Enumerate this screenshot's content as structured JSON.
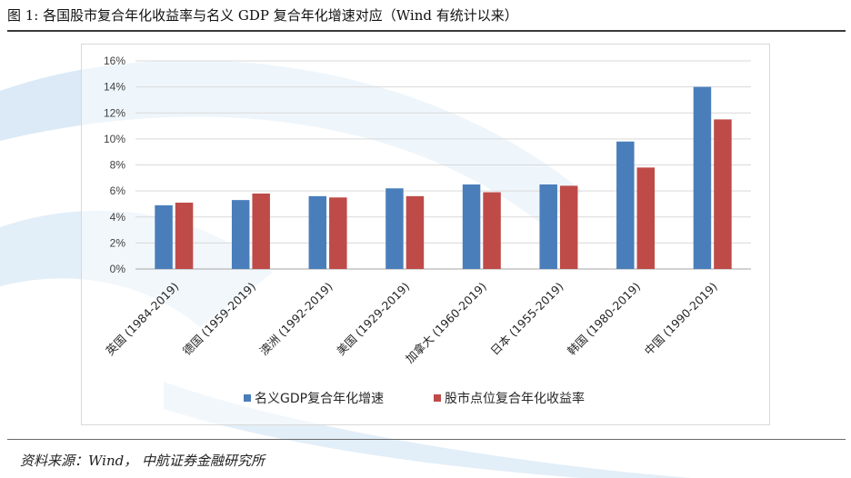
{
  "figure": {
    "title": "图 1:  各国股市复合年化收益率与名义 GDP 复合年化增速对应（Wind 有统计以来）",
    "source": "资料来源：Wind， 中航证券金融研究所"
  },
  "colors": {
    "series_gdp": "#4a7ebb",
    "series_stock": "#be4b48",
    "gridline": "#d9d9d9",
    "watermark": "#cfe3f3"
  },
  "chart_data": {
    "type": "bar",
    "categories": [
      "英国 (1984-2019)",
      "德国 (1959-2019)",
      "澳洲  (1992-2019)",
      "美国 (1929-2019)",
      "加拿大 (1960-2019)",
      "日本 (1955-2019)",
      "韩国 (1980-2019)",
      "中国 (1990-2019)"
    ],
    "series": [
      {
        "name": "名义GDP复合年化增速",
        "values": [
          4.9,
          5.3,
          5.6,
          6.2,
          6.5,
          6.5,
          9.8,
          14.0
        ]
      },
      {
        "name": "股市点位复合年化收益率",
        "values": [
          5.1,
          5.8,
          5.5,
          5.6,
          5.9,
          6.4,
          7.8,
          11.5
        ]
      }
    ],
    "yticks": [
      "0%",
      "2%",
      "4%",
      "6%",
      "8%",
      "10%",
      "12%",
      "14%",
      "16%"
    ],
    "ylim": [
      0,
      16
    ],
    "unit": "%",
    "grid": true,
    "legend_position": "bottom"
  }
}
